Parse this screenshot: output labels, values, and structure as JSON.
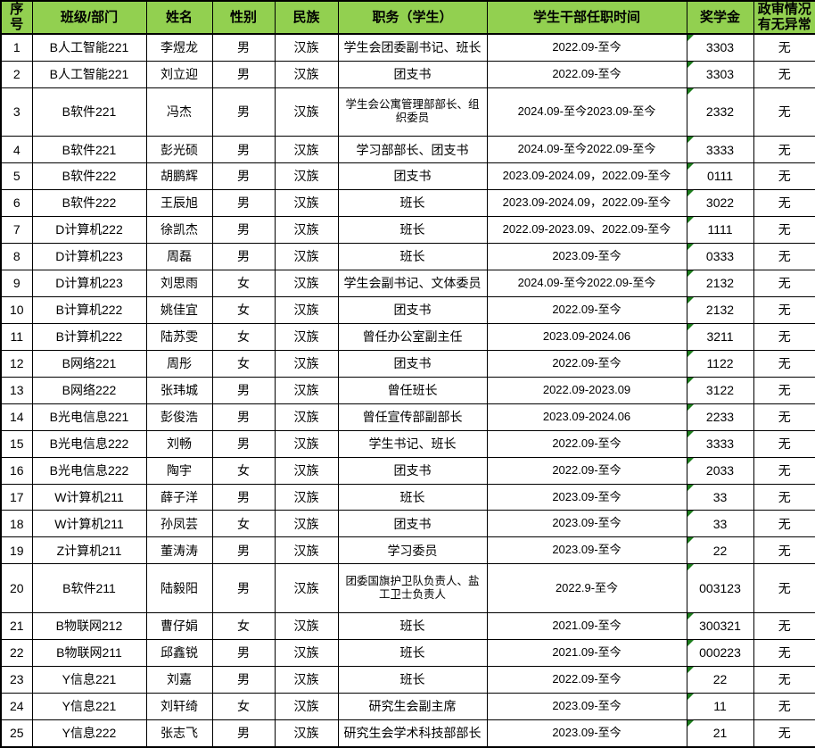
{
  "colors": {
    "header_bg": "#92D050",
    "border": "#000000",
    "indicator_triangle_green": "#1E7E1E"
  },
  "icons": {
    "scholarship_cell_corner": "number-stored-as-text-indicator"
  },
  "table": {
    "headers": [
      "序号",
      "班级/部门",
      "姓名",
      "性别",
      "民族",
      "职务（学生）",
      "学生干部任职时间",
      "奖学金",
      "政审情况有无异常"
    ],
    "rows": [
      {
        "no": "1",
        "class_dept": "B人工智能221",
        "name": "李煜龙",
        "gender": "男",
        "ethnicity": "汉族",
        "position": "学生会团委副书记、班长",
        "tenure": "2022.09-至今",
        "scholarship": "3303",
        "review": "无"
      },
      {
        "no": "2",
        "class_dept": "B人工智能221",
        "name": "刘立迎",
        "gender": "男",
        "ethnicity": "汉族",
        "position": "团支书",
        "tenure": "2022.09-至今",
        "scholarship": "3303",
        "review": "无"
      },
      {
        "no": "3",
        "class_dept": "B软件221",
        "name": "冯杰",
        "gender": "男",
        "ethnicity": "汉族",
        "position": "学生会公寓管理部部长、组织委员",
        "tenure": "2024.09-至今2023.09-至今",
        "scholarship": "2332",
        "review": "无"
      },
      {
        "no": "4",
        "class_dept": "B软件221",
        "name": "彭光硕",
        "gender": "男",
        "ethnicity": "汉族",
        "position": "学习部部长、团支书",
        "tenure": "2024.09-至今2022.09-至今",
        "scholarship": "3333",
        "review": "无"
      },
      {
        "no": "5",
        "class_dept": "B软件222",
        "name": "胡鹏辉",
        "gender": "男",
        "ethnicity": "汉族",
        "position": "团支书",
        "tenure": "2023.09-2024.09，2022.09-至今",
        "scholarship": "0111",
        "review": "无"
      },
      {
        "no": "6",
        "class_dept": "B软件222",
        "name": "王辰旭",
        "gender": "男",
        "ethnicity": "汉族",
        "position": "班长",
        "tenure": "2023.09-2024.09，2022.09-至今",
        "scholarship": "3022",
        "review": "无"
      },
      {
        "no": "7",
        "class_dept": "D计算机222",
        "name": "徐凯杰",
        "gender": "男",
        "ethnicity": "汉族",
        "position": "班长",
        "tenure": "2022.09-2023.09、2022.09-至今",
        "scholarship": "1111",
        "review": "无"
      },
      {
        "no": "8",
        "class_dept": "D计算机223",
        "name": "周磊",
        "gender": "男",
        "ethnicity": "汉族",
        "position": "班长",
        "tenure": "2023.09-至今",
        "scholarship": "0333",
        "review": "无"
      },
      {
        "no": "9",
        "class_dept": "D计算机223",
        "name": "刘思雨",
        "gender": "女",
        "ethnicity": "汉族",
        "position": "学生会副书记、文体委员",
        "tenure": "2024.09-至今2022.09-至今",
        "scholarship": "2132",
        "review": "无"
      },
      {
        "no": "10",
        "class_dept": "B计算机222",
        "name": "姚佳宜",
        "gender": "女",
        "ethnicity": "汉族",
        "position": "团支书",
        "tenure": "2022.09-至今",
        "scholarship": "2132",
        "review": "无"
      },
      {
        "no": "11",
        "class_dept": "B计算机222",
        "name": "陆苏雯",
        "gender": "女",
        "ethnicity": "汉族",
        "position": "曾任办公室副主任",
        "tenure": "2023.09-2024.06",
        "scholarship": "3211",
        "review": "无"
      },
      {
        "no": "12",
        "class_dept": "B网络221",
        "name": "周彤",
        "gender": "女",
        "ethnicity": "汉族",
        "position": "团支书",
        "tenure": "2022.09-至今",
        "scholarship": "1122",
        "review": "无"
      },
      {
        "no": "13",
        "class_dept": "B网络222",
        "name": "张玮城",
        "gender": "男",
        "ethnicity": "汉族",
        "position": "曾任班长",
        "tenure": "2022.09-2023.09",
        "scholarship": "3122",
        "review": "无"
      },
      {
        "no": "14",
        "class_dept": "B光电信息221",
        "name": "彭俊浩",
        "gender": "男",
        "ethnicity": "汉族",
        "position": "曾任宣传部副部长",
        "tenure": "2023.09-2024.06",
        "scholarship": "2233",
        "review": "无"
      },
      {
        "no": "15",
        "class_dept": "B光电信息222",
        "name": "刘畅",
        "gender": "男",
        "ethnicity": "汉族",
        "position": "学生书记、班长",
        "tenure": "2022.09-至今",
        "scholarship": "3333",
        "review": "无"
      },
      {
        "no": "16",
        "class_dept": "B光电信息222",
        "name": "陶宇",
        "gender": "女",
        "ethnicity": "汉族",
        "position": "团支书",
        "tenure": "2022.09-至今",
        "scholarship": "2033",
        "review": "无"
      },
      {
        "no": "17",
        "class_dept": "W计算机211",
        "name": "薛子洋",
        "gender": "男",
        "ethnicity": "汉族",
        "position": "班长",
        "tenure": "2023.09-至今",
        "scholarship": "33",
        "review": "无"
      },
      {
        "no": "18",
        "class_dept": "W计算机211",
        "name": "孙凤芸",
        "gender": "女",
        "ethnicity": "汉族",
        "position": "团支书",
        "tenure": "2023.09-至今",
        "scholarship": "33",
        "review": "无"
      },
      {
        "no": "19",
        "class_dept": "Z计算机211",
        "name": "董涛涛",
        "gender": "男",
        "ethnicity": "汉族",
        "position": "学习委员",
        "tenure": "2023.09-至今",
        "scholarship": "22",
        "review": "无"
      },
      {
        "no": "20",
        "class_dept": "B软件211",
        "name": "陆毅阳",
        "gender": "男",
        "ethnicity": "汉族",
        "position": "团委国旗护卫队负责人、盐工卫士负责人",
        "tenure": "2022.9-至今",
        "scholarship": "003123",
        "review": "无"
      },
      {
        "no": "21",
        "class_dept": "B物联网212",
        "name": "曹仔娟",
        "gender": "女",
        "ethnicity": "汉族",
        "position": "班长",
        "tenure": "2021.09-至今",
        "scholarship": "300321",
        "review": "无"
      },
      {
        "no": "22",
        "class_dept": "B物联网211",
        "name": "邱鑫锐",
        "gender": "男",
        "ethnicity": "汉族",
        "position": "班长",
        "tenure": "2021.09-至今",
        "scholarship": "000223",
        "review": "无"
      },
      {
        "no": "23",
        "class_dept": "Y信息221",
        "name": "刘嘉",
        "gender": "男",
        "ethnicity": "汉族",
        "position": "班长",
        "tenure": "2022.09-至今",
        "scholarship": "22",
        "review": "无"
      },
      {
        "no": "24",
        "class_dept": "Y信息221",
        "name": "刘轩绮",
        "gender": "女",
        "ethnicity": "汉族",
        "position": "研究生会副主席",
        "tenure": "2023.09-至今",
        "scholarship": "11",
        "review": "无"
      },
      {
        "no": "25",
        "class_dept": "Y信息222",
        "name": "张志飞",
        "gender": "男",
        "ethnicity": "汉族",
        "position": "研究生会学术科技部部长",
        "tenure": "2023.09-至今",
        "scholarship": "21",
        "review": "无"
      }
    ]
  }
}
